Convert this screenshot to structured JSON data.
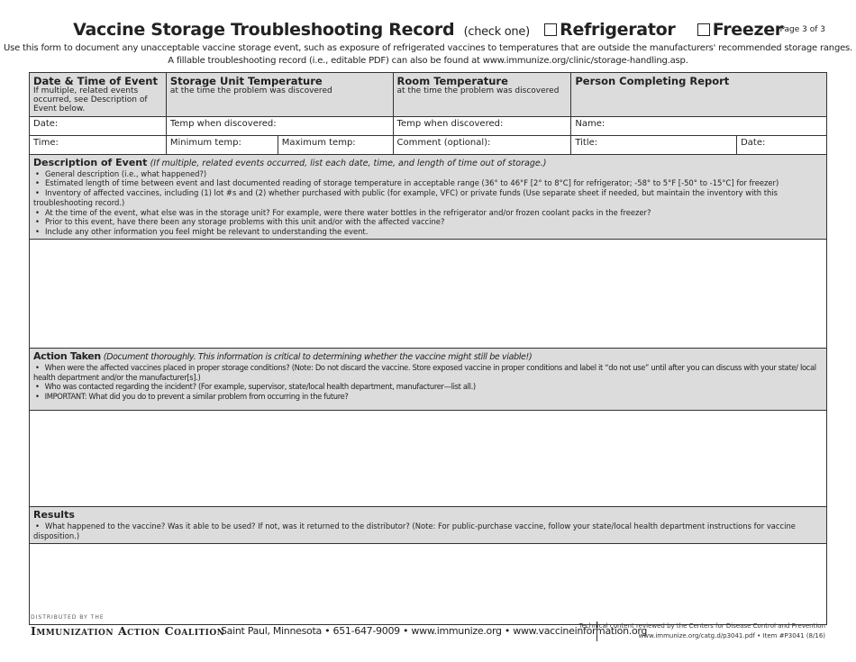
{
  "header": {
    "title": "Vaccine Storage Troubleshooting Record",
    "check_one": "(check one)",
    "option_refrigerator": "Refrigerator",
    "option_freezer": "Freezer",
    "page": "Page 3 of 3"
  },
  "intro": [
    "Use this form to document any unacceptable vaccine storage event, such as exposure of refrigerated vaccines to temperatures that are outside the manufacturers' recommended storage ranges.",
    "A fillable troubleshooting record (i.e., editable PDF) can also be found at www.immunize.org/clinic/storage-handling.asp."
  ],
  "columns": [
    {
      "title": "Date & Time of Event",
      "sub": "If multiple, related events occurred, see Description of Event below."
    },
    {
      "title": "Storage Unit Temperature",
      "sub": "at the time the problem was discovered"
    },
    {
      "title": "Room Temperature",
      "sub": "at the time the problem was discovered"
    },
    {
      "title": "Person Completing Report",
      "sub": ""
    }
  ],
  "fields": {
    "date": "Date:",
    "temp_discovered_unit": "Temp when discovered:",
    "temp_discovered_room": "Temp when discovered:",
    "name": "Name:",
    "time": "Time:",
    "min_temp": "Minimum temp:",
    "max_temp": "Maximum temp:",
    "comment": "Comment (optional):",
    "title": "Title:",
    "date2": "Date:"
  },
  "description": {
    "title": "Description of Event",
    "note": "(If multiple, related events occurred, list each date, time, and length of time out of storage.)",
    "items": [
      "General description (i.e., what happened?)",
      "Estimated length of time between event and last documented reading of storage temperature in acceptable range (36° to 46°F [2° to 8°C] for refrigerator; -58° to 5°F [-50° to -15°C] for freezer)",
      "Inventory of affected vaccines, including (1) lot #s and (2) whether purchased with public (for example, VFC) or private funds (Use separate sheet if needed, but maintain the inventory with this troubleshooting record.)",
      "At the time of the event, what else was in the storage unit? For example, were there water bottles in the refrigerator and/or frozen coolant packs in the freezer?",
      "Prior to this event, have there been any storage problems with this unit and/or with the affected vaccine?",
      "Include any other information you feel might be relevant to understanding the event."
    ]
  },
  "action": {
    "title": "Action Taken",
    "note": "(Document thoroughly. This information is critical to determining whether the vaccine might still be viable!)",
    "items": [
      "When were the affected vaccines placed in proper storage conditions? (Note: Do not discard the vaccine. Store exposed vaccine in proper conditions and label it “do not use” until after you can discuss with your state/ local health department and/or the manufacturer[s].)",
      "Who was contacted regarding the incident? (For example, supervisor, state/local health department, manufacturer—list all.)",
      "IMPORTANT: What did you do to prevent a similar problem from occurring in the future?"
    ]
  },
  "results": {
    "title": "Results",
    "items": [
      "What happened to the vaccine? Was it able to be used? If not, was it returned to the distributor? (Note: For public-purchase vaccine, follow your state/local health department instructions for vaccine disposition.)"
    ]
  },
  "footer": {
    "distributed": "DISTRIBUTED BY THE",
    "org": "Immunization Action Coalition",
    "address": "Saint Paul, Minnesota • 651-647-9009 • www.immunize.org • www.vaccineinformation.org",
    "review": "Technical content reviewed by the Centers for Disease Control and Prevention",
    "item": "www.immunize.org/catg.d/p3041.pdf • Item #P3041 (8/16)"
  }
}
